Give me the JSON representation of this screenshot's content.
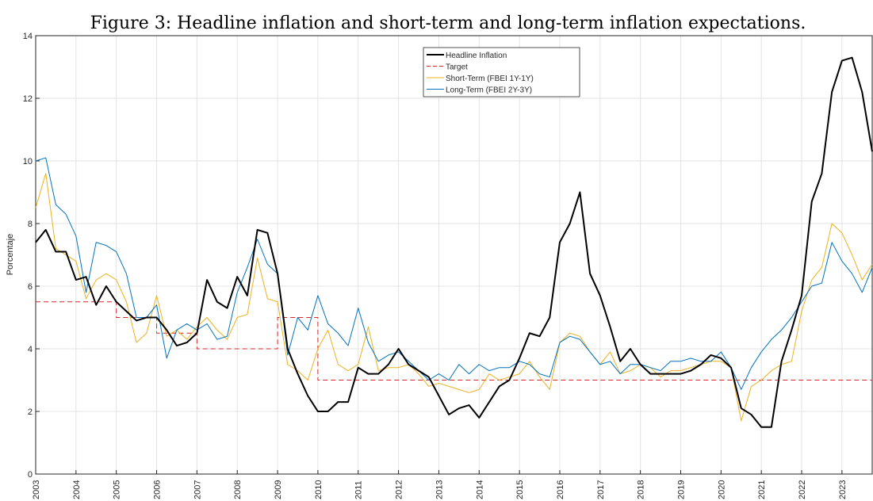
{
  "chart_data": {
    "type": "line",
    "title": "Figure 3: Headline inflation and short-term and long-term inflation expectations.",
    "y_label": "Porcentaje",
    "x": [
      2003,
      2003.25,
      2003.5,
      2003.75,
      2004,
      2004.25,
      2004.5,
      2004.75,
      2005,
      2005.25,
      2005.5,
      2005.75,
      2006,
      2006.25,
      2006.5,
      2006.75,
      2007,
      2007.25,
      2007.5,
      2007.75,
      2008,
      2008.25,
      2008.5,
      2008.75,
      2009,
      2009.25,
      2009.5,
      2009.75,
      2010,
      2010.25,
      2010.5,
      2010.75,
      2011,
      2011.25,
      2011.5,
      2011.75,
      2012,
      2012.25,
      2012.5,
      2012.75,
      2013,
      2013.25,
      2013.5,
      2013.75,
      2014,
      2014.25,
      2014.5,
      2014.75,
      2015,
      2015.25,
      2015.5,
      2015.75,
      2016,
      2016.25,
      2016.5,
      2016.75,
      2017,
      2017.25,
      2017.5,
      2017.75,
      2018,
      2018.25,
      2018.5,
      2018.75,
      2019,
      2019.25,
      2019.5,
      2019.75,
      2020,
      2020.25,
      2020.5,
      2020.75,
      2021,
      2021.25,
      2021.5,
      2021.75,
      2022,
      2022.25,
      2022.5,
      2022.75,
      2023,
      2023.25,
      2023.5,
      2023.75
    ],
    "series": [
      {
        "name": "Headline Inflation",
        "color": "#000000",
        "width": 2,
        "linestyle": "solid",
        "values": [
          7.4,
          7.8,
          7.1,
          7.1,
          6.2,
          6.3,
          5.4,
          6.0,
          5.5,
          5.2,
          4.9,
          5.0,
          5.0,
          4.6,
          4.1,
          4.2,
          4.5,
          6.2,
          5.5,
          5.3,
          6.3,
          5.7,
          7.8,
          7.7,
          6.4,
          4.0,
          3.2,
          2.5,
          2.0,
          2.0,
          2.3,
          2.3,
          3.4,
          3.2,
          3.2,
          3.5,
          4.0,
          3.5,
          3.3,
          3.1,
          2.5,
          1.9,
          2.1,
          2.2,
          1.8,
          2.3,
          2.8,
          3.0,
          3.7,
          4.5,
          4.4,
          5.0,
          7.4,
          8.0,
          9.0,
          6.4,
          5.7,
          4.7,
          3.6,
          4.0,
          3.5,
          3.2,
          3.2,
          3.2,
          3.2,
          3.3,
          3.5,
          3.8,
          3.7,
          3.4,
          2.1,
          1.9,
          1.5,
          1.5,
          3.6,
          4.6,
          5.7,
          8.7,
          9.6,
          12.2,
          13.2,
          13.3,
          12.2,
          10.3
        ]
      },
      {
        "name": "Target",
        "color": "#d62728",
        "width": 1,
        "linestyle": "dashed",
        "x": [
          2003,
          2005,
          2005,
          2006,
          2006,
          2007,
          2007,
          2009,
          2009,
          2010,
          2010,
          2023.75
        ],
        "values": [
          5.5,
          5.5,
          5,
          5,
          4.5,
          4.5,
          4,
          4,
          5,
          5,
          3,
          3
        ]
      },
      {
        "name": "Short-Term (FBEI 1Y-1Y)",
        "color": "#EDB120",
        "width": 1,
        "linestyle": "solid",
        "values": [
          8.5,
          9.6,
          7.2,
          7.0,
          6.8,
          5.6,
          6.2,
          6.4,
          6.2,
          5.5,
          4.2,
          4.5,
          5.7,
          4.4,
          4.6,
          4.3,
          4.7,
          5.0,
          4.6,
          4.3,
          5.0,
          5.1,
          6.9,
          5.6,
          5.5,
          3.5,
          3.3,
          3.0,
          4.0,
          4.6,
          3.5,
          3.3,
          3.5,
          4.7,
          3.3,
          3.4,
          3.4,
          3.5,
          3.2,
          2.8,
          2.9,
          2.8,
          2.7,
          2.6,
          2.7,
          3.2,
          3.0,
          3.1,
          3.2,
          3.6,
          3.1,
          2.7,
          4.2,
          4.5,
          4.4,
          3.9,
          3.5,
          3.9,
          3.2,
          3.3,
          3.5,
          3.4,
          3.1,
          3.3,
          3.3,
          3.4,
          3.5,
          3.6,
          3.6,
          3.4,
          1.7,
          2.8,
          3.0,
          3.3,
          3.5,
          3.6,
          5.2,
          6.2,
          6.6,
          8.0,
          7.7,
          7.0,
          6.2,
          6.7
        ]
      },
      {
        "name": "Long-Term (FBEI 2Y-3Y)",
        "color": "#0072BD",
        "width": 1,
        "linestyle": "solid",
        "values": [
          10.0,
          10.1,
          8.6,
          8.3,
          7.6,
          5.8,
          7.4,
          7.3,
          7.1,
          6.4,
          5.0,
          5.0,
          5.4,
          3.7,
          4.6,
          4.8,
          4.6,
          4.8,
          4.3,
          4.4,
          5.8,
          6.6,
          7.5,
          6.7,
          6.4,
          3.8,
          5.0,
          4.6,
          5.7,
          4.8,
          4.5,
          4.1,
          5.3,
          4.2,
          3.6,
          3.8,
          3.9,
          3.6,
          3.3,
          3.0,
          3.2,
          3.0,
          3.5,
          3.2,
          3.5,
          3.3,
          3.4,
          3.4,
          3.6,
          3.5,
          3.2,
          3.1,
          4.2,
          4.4,
          4.3,
          3.9,
          3.5,
          3.6,
          3.2,
          3.5,
          3.5,
          3.4,
          3.3,
          3.6,
          3.6,
          3.7,
          3.6,
          3.6,
          3.9,
          3.4,
          2.7,
          3.4,
          3.9,
          4.3,
          4.6,
          5.0,
          5.5,
          6.0,
          6.1,
          7.4,
          6.8,
          6.4,
          5.8,
          6.6
        ]
      }
    ],
    "xlim": [
      2003,
      2023.75
    ],
    "xticks": [
      2003,
      2004,
      2005,
      2006,
      2007,
      2008,
      2009,
      2010,
      2011,
      2012,
      2013,
      2014,
      2015,
      2016,
      2017,
      2018,
      2019,
      2020,
      2021,
      2022,
      2023
    ],
    "ylim": [
      0,
      14
    ],
    "yticks": [
      0,
      2,
      4,
      6,
      8,
      10,
      12,
      14
    ],
    "grid": true,
    "legend": "upper center"
  }
}
